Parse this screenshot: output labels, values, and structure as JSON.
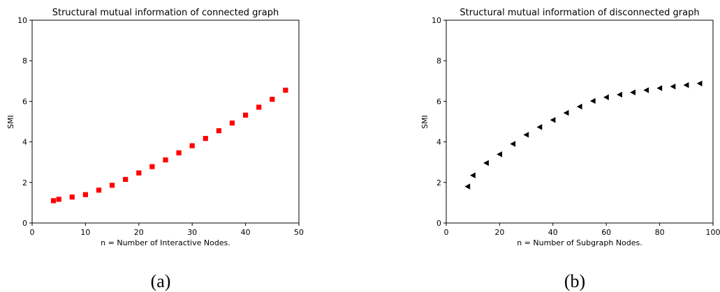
{
  "chart_data": [
    {
      "type": "scatter",
      "title": "Structural mutual information of connected graph",
      "xlabel": "n = Number of Interactive Nodes.",
      "ylabel": "SMI",
      "xlim": [
        0,
        50
      ],
      "ylim": [
        0,
        10
      ],
      "xticks": [
        0,
        10,
        20,
        30,
        40,
        50
      ],
      "yticks": [
        0,
        2,
        4,
        6,
        8,
        10
      ],
      "grid": false,
      "marker": "square",
      "color": "#ff0000",
      "caption": "(a)",
      "x": [
        4,
        5,
        7.5,
        10,
        12.5,
        15,
        17.5,
        20,
        22.5,
        25,
        27.5,
        30,
        32.5,
        35,
        37.5,
        40,
        42.5,
        45,
        47.5
      ],
      "y": [
        1.1,
        1.17,
        1.28,
        1.4,
        1.62,
        1.86,
        2.15,
        2.47,
        2.78,
        3.11,
        3.46,
        3.81,
        4.17,
        4.55,
        4.93,
        5.32,
        5.71,
        6.1,
        6.55
      ]
    },
    {
      "type": "scatter",
      "title": "Structural mutual information of disconnected graph",
      "xlabel": "n = Number of Subgraph Nodes.",
      "ylabel": "SMI",
      "xlim": [
        0,
        100
      ],
      "ylim": [
        0,
        10
      ],
      "xticks": [
        0,
        20,
        40,
        60,
        80,
        100
      ],
      "yticks": [
        0,
        2,
        4,
        6,
        8,
        10
      ],
      "grid": false,
      "marker": "triangle-left",
      "color": "#000000",
      "caption": "(b)",
      "x": [
        8,
        10,
        15,
        20,
        25,
        30,
        35,
        40,
        45,
        50,
        55,
        60,
        65,
        70,
        75,
        80,
        85,
        90,
        95
      ],
      "y": [
        1.8,
        2.35,
        2.96,
        3.39,
        3.9,
        4.35,
        4.73,
        5.08,
        5.43,
        5.74,
        6.02,
        6.2,
        6.33,
        6.44,
        6.55,
        6.65,
        6.73,
        6.8,
        6.88
      ]
    }
  ]
}
